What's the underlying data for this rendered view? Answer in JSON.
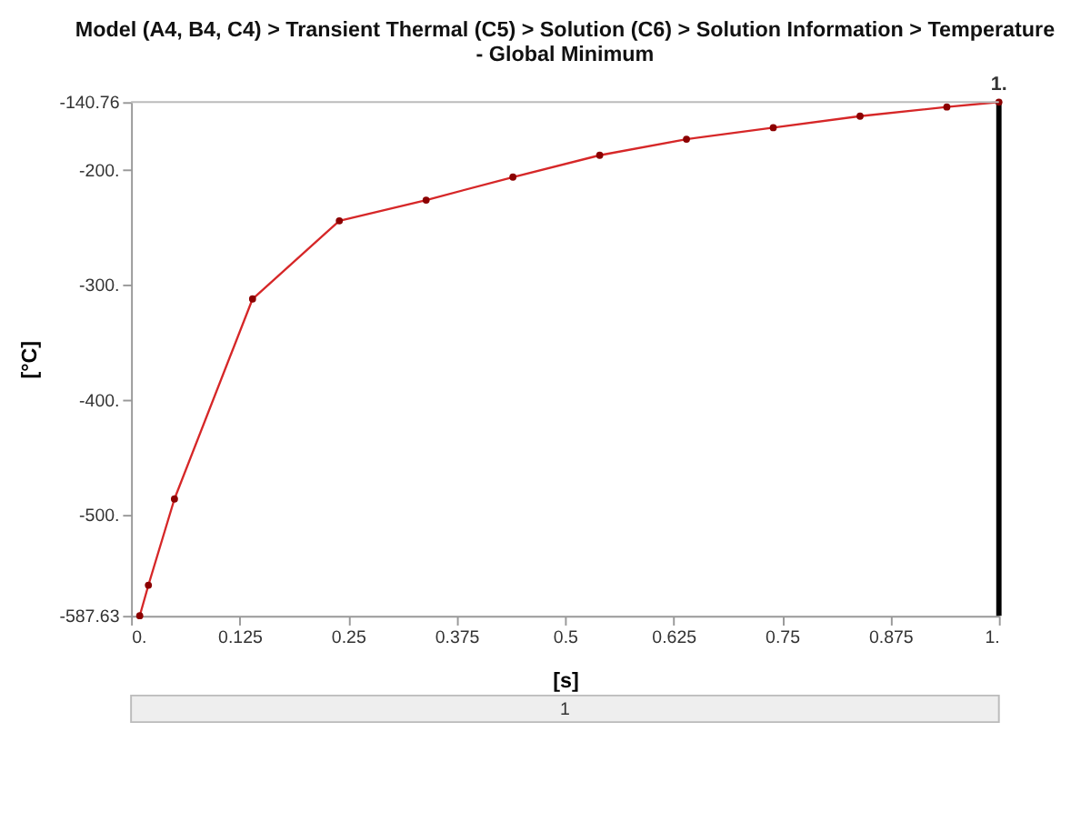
{
  "chart_data": {
    "type": "line",
    "title": [
      "Model (A4, B4, C4) > Transient Thermal (C5) > Solution (C6) > Solution Information > Temperature",
      "- Global Minimum"
    ],
    "xlabel": "[s]",
    "ylabel": "[°C]",
    "x": [
      0.01,
      0.02,
      0.05,
      0.14,
      0.24,
      0.34,
      0.44,
      0.54,
      0.64,
      0.74,
      0.84,
      0.94,
      1.0
    ],
    "series": [
      {
        "color": "#d62728",
        "values": [
          -587.63,
          -561,
          -486,
          -312,
          -244,
          -226,
          -206,
          -187,
          -173,
          -163,
          -153,
          -145,
          -140.76
        ]
      }
    ],
    "marker": "circle",
    "xlim": [
      0,
      1
    ],
    "xticks": [
      {
        "value": 0,
        "label": "0."
      },
      0.125,
      0.25,
      0.375,
      0.5,
      0.625,
      0.75,
      0.875,
      {
        "value": 1,
        "label": "1."
      }
    ],
    "ylim": [
      -587.63,
      -140.76
    ],
    "yticks": [
      -587.63,
      {
        "value": -500,
        "label": "-500."
      },
      {
        "value": -400,
        "label": "-400."
      },
      {
        "value": -300,
        "label": "-300."
      },
      {
        "value": -200,
        "label": "-200."
      },
      -140.76
    ],
    "ref_lines": [
      {
        "axis": "x",
        "value": 1,
        "label": "1.",
        "color": "#000000"
      }
    ],
    "annotations": [
      "1"
    ],
    "grid": false
  }
}
